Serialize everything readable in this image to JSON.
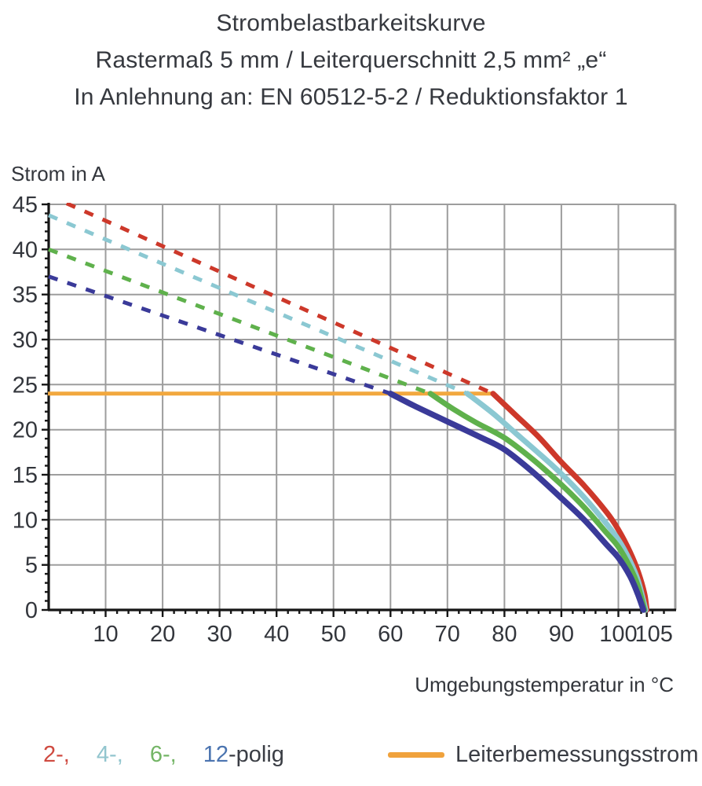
{
  "title": {
    "line1": "Strombelastbarkeitskurve",
    "line2": "Rastermaß 5 mm / Leiterquerschnitt 2,5 mm² „e“",
    "line3": "In Anlehnung an: EN 60512-5-2 / Reduktionsfaktor 1"
  },
  "chart_data": {
    "type": "line",
    "title": "Strombelastbarkeitskurve",
    "xlabel": "Umgebungstemperatur in °C",
    "ylabel": "Strom in A",
    "xlim": [
      0,
      110
    ],
    "ylim": [
      0,
      45
    ],
    "xticks": [
      10,
      20,
      30,
      40,
      50,
      60,
      70,
      80,
      90,
      100,
      105
    ],
    "yticks": [
      0,
      5,
      10,
      15,
      20,
      25,
      30,
      35,
      40,
      45
    ],
    "x_gridlines": [
      10,
      20,
      30,
      40,
      50,
      60,
      70,
      80,
      90,
      100
    ],
    "y_gridlines": [
      5,
      10,
      15,
      20,
      25,
      30,
      35,
      40,
      45
    ],
    "x_minor_step": 2,
    "y_minor_step": 1,
    "grid": true,
    "legend_position": "bottom",
    "colors": {
      "grid": "#9d9d9d",
      "axis": "#161616",
      "tick_text": "#33363c"
    },
    "series": [
      {
        "name": "Leiterbemessungsstrom",
        "color": "#f2a83e",
        "style": "solid",
        "width": 5,
        "points": [
          [
            0,
            24
          ],
          [
            78,
            24
          ]
        ]
      },
      {
        "name": "2-polig-dashed",
        "color": "#cd382a",
        "style": "dashed",
        "width": 5,
        "points": [
          [
            0,
            46
          ],
          [
            78,
            24
          ]
        ]
      },
      {
        "name": "4-polig-dashed",
        "color": "#8bc8d2",
        "style": "dashed",
        "width": 5,
        "points": [
          [
            0,
            43.8
          ],
          [
            73.5,
            24
          ]
        ]
      },
      {
        "name": "6-polig-dashed",
        "color": "#5fb14c",
        "style": "dashed",
        "width": 5,
        "points": [
          [
            0,
            40
          ],
          [
            67,
            24
          ]
        ]
      },
      {
        "name": "12-polig-dashed",
        "color": "#3a3a99",
        "style": "dashed",
        "width": 5,
        "points": [
          [
            0,
            37
          ],
          [
            60,
            24
          ]
        ]
      },
      {
        "name": "2-polig",
        "color": "#cd382a",
        "style": "solid",
        "width": 7,
        "points": [
          [
            78,
            24
          ],
          [
            82,
            21.6
          ],
          [
            86,
            19.2
          ],
          [
            90,
            16.4
          ],
          [
            94,
            13.8
          ],
          [
            98,
            10.8
          ],
          [
            100,
            8.9
          ],
          [
            102,
            6.5
          ],
          [
            103.5,
            4.2
          ],
          [
            104.6,
            1.8
          ],
          [
            105,
            0
          ]
        ]
      },
      {
        "name": "4-polig",
        "color": "#8bc8d2",
        "style": "solid",
        "width": 7,
        "points": [
          [
            73.5,
            24
          ],
          [
            78,
            21.8
          ],
          [
            82,
            19.6
          ],
          [
            86,
            17.4
          ],
          [
            90,
            15.1
          ],
          [
            94,
            12.5
          ],
          [
            98,
            9.5
          ],
          [
            100,
            7.8
          ],
          [
            102,
            5.5
          ],
          [
            103.5,
            3.2
          ],
          [
            104.8,
            0
          ]
        ]
      },
      {
        "name": "6-polig",
        "color": "#5fb14c",
        "style": "solid",
        "width": 7,
        "points": [
          [
            67,
            24
          ],
          [
            71,
            22.3
          ],
          [
            75,
            20.8
          ],
          [
            80,
            19.1
          ],
          [
            85,
            16.7
          ],
          [
            90,
            13.9
          ],
          [
            94,
            11.4
          ],
          [
            98,
            8.5
          ],
          [
            100,
            7.0
          ],
          [
            102,
            4.8
          ],
          [
            103.5,
            2.6
          ],
          [
            104.6,
            0
          ]
        ]
      },
      {
        "name": "12-polig",
        "color": "#3a3a99",
        "style": "solid",
        "width": 7.5,
        "points": [
          [
            60,
            24
          ],
          [
            64,
            22.7
          ],
          [
            68,
            21.5
          ],
          [
            72,
            20.3
          ],
          [
            76,
            19.1
          ],
          [
            80,
            17.8
          ],
          [
            85,
            15.3
          ],
          [
            90,
            12.4
          ],
          [
            94,
            10.0
          ],
          [
            98,
            7.2
          ],
          [
            100,
            5.8
          ],
          [
            102,
            3.8
          ],
          [
            103.4,
            1.8
          ],
          [
            104.4,
            0
          ]
        ]
      }
    ],
    "xtick_nudge": {
      "105": 9
    },
    "rated_current_A": 24
  },
  "legend": {
    "poles": [
      {
        "label": "2-,",
        "color": "#cf4a40"
      },
      {
        "label": "4-,",
        "color": "#92c5ce"
      },
      {
        "label": "6-,",
        "color": "#74b566"
      },
      {
        "label": "12",
        "color": "#4b74b0"
      }
    ],
    "poles_suffix": "-polig",
    "rated": {
      "label": "Leiterbemessungsstrom",
      "color": "#f0a23c"
    }
  }
}
